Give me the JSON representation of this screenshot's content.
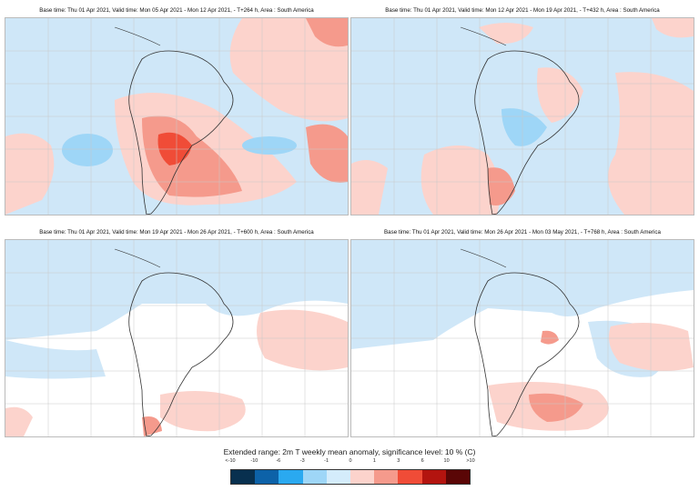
{
  "panels": [
    {
      "title": "Base time: Thu 01 Apr 2021, Valid time: Mon 05 Apr 2021 - Mon 12 Apr 2021, - T+264 h, Area : South America",
      "anomaly_pattern": "warm",
      "mean_anomaly_c": 2
    },
    {
      "title": "Base time: Thu 01 Apr 2021, Valid time: Mon 12 Apr 2021 - Mon 19 Apr 2021, - T+432 h, Area : South America",
      "anomaly_pattern": "mixed-cold",
      "mean_anomaly_c": -1
    },
    {
      "title": "Base time: Thu 01 Apr 2021, Valid time: Mon 19 Apr 2021 - Mon 26 Apr 2021, - T+600 h, Area : South America",
      "anomaly_pattern": "weak",
      "mean_anomaly_c": 0
    },
    {
      "title": "Base time: Thu 01 Apr 2021, Valid time: Mon 26 Apr 2021 - Mon 03 May 2021, - T+768 h, Area : South America",
      "anomaly_pattern": "weak",
      "mean_anomaly_c": 0
    }
  ],
  "legend": {
    "title": "Extended range: 2m T weekly mean anomaly, significance level: 10 % (C)",
    "labels": [
      "<-10",
      "-10",
      "-6",
      "-3",
      "-1",
      "0",
      "1",
      "3",
      "6",
      "10",
      ">10"
    ],
    "colors": [
      "#08304f",
      "#0d62a8",
      "#2aa9f0",
      "#9ed6f7",
      "#d4ecfb",
      "#fcd3cc",
      "#f59a8c",
      "#f04c37",
      "#b3140f",
      "#5a0606"
    ]
  },
  "colors": {
    "land_line": "#333333",
    "grid": "#c8c8c8",
    "cold_light": "#cfe7f8",
    "cold_mid": "#9ed6f7",
    "warm_light": "#fcd3cc",
    "warm_mid": "#f59a8c",
    "warm_strong": "#f04c37"
  }
}
